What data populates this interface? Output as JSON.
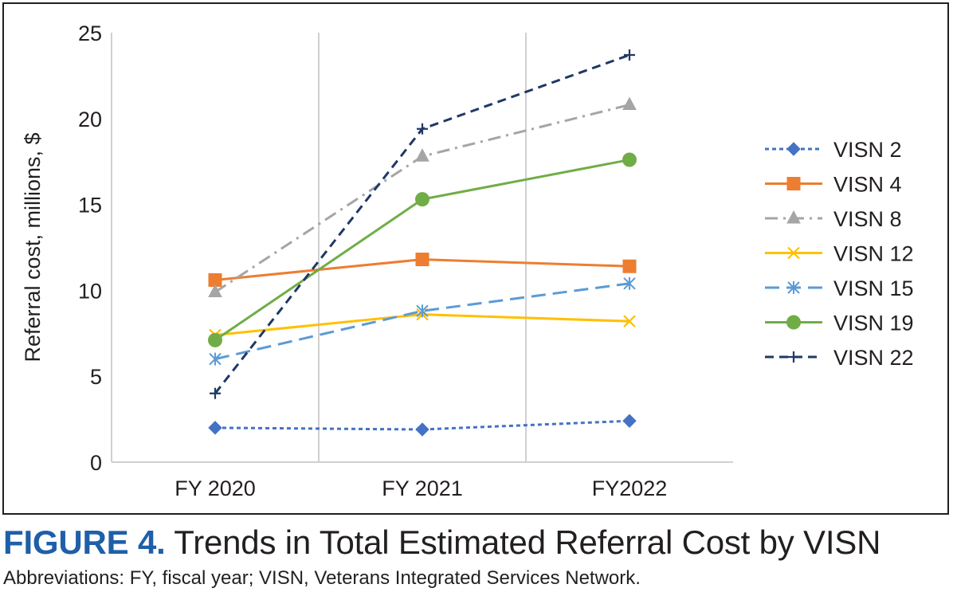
{
  "chart_data": {
    "type": "line",
    "title": "",
    "xlabel": "",
    "ylabel": "Referral cost, millions, $",
    "ylim": [
      0,
      25
    ],
    "yticks": [
      0,
      5,
      10,
      15,
      20,
      25
    ],
    "grid": "vertical",
    "legend_position": "right",
    "categories": [
      "FY 2020",
      "FY 2021",
      "FY2022"
    ],
    "series": [
      {
        "name": "VISN 2",
        "values": [
          2.0,
          1.9,
          2.4
        ],
        "color": "#4472c4",
        "marker": "diamond",
        "dash": "short"
      },
      {
        "name": "VISN 4",
        "values": [
          10.6,
          11.8,
          11.4
        ],
        "color": "#ed7d31",
        "marker": "square",
        "dash": "solid"
      },
      {
        "name": "VISN 8",
        "values": [
          9.9,
          17.8,
          20.8
        ],
        "color": "#a5a5a5",
        "marker": "triangle",
        "dash": "dashdot"
      },
      {
        "name": "VISN 12",
        "values": [
          7.4,
          8.6,
          8.2
        ],
        "color": "#ffc000",
        "marker": "x",
        "dash": "solid"
      },
      {
        "name": "VISN 15",
        "values": [
          6.0,
          8.8,
          10.4
        ],
        "color": "#5b9bd5",
        "marker": "asterisk",
        "dash": "long"
      },
      {
        "name": "VISN 19",
        "values": [
          7.1,
          15.3,
          17.6
        ],
        "color": "#70ad47",
        "marker": "circle",
        "dash": "solid"
      },
      {
        "name": "VISN 22",
        "values": [
          4.0,
          19.4,
          23.7
        ],
        "color": "#203864",
        "marker": "plus",
        "dash": "dash"
      }
    ]
  },
  "caption": {
    "label": "FIGURE 4.",
    "title": "Trends in Total Estimated Referral Cost by VISN",
    "note": "Abbreviations: FY, fiscal year; VISN, Veterans Integrated Services Network."
  }
}
